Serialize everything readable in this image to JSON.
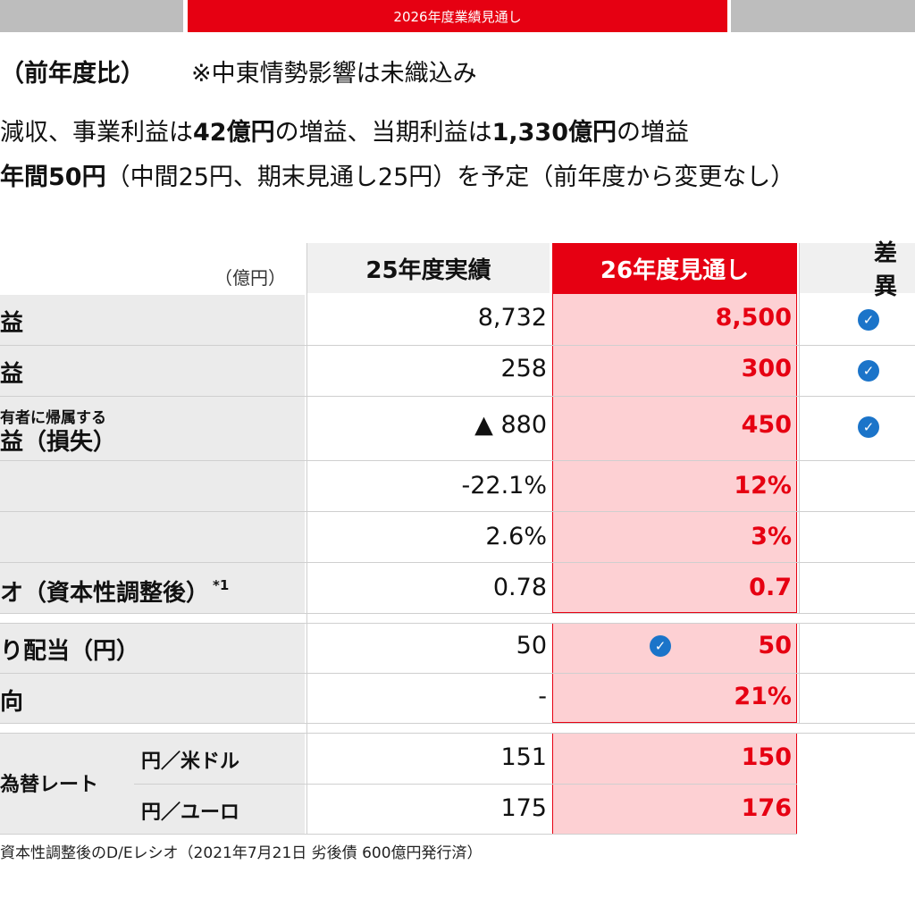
{
  "header": {
    "tab_label": "2026年度業績見通し"
  },
  "headlines": {
    "line1_a": "（前年度比）",
    "line1_b": "※中東情勢影響は未織込み",
    "line2_a": "減収、事業利益は",
    "line2_b": "42億円",
    "line2_c": "の増益、当期利益は",
    "line2_d": "1,330億円",
    "line2_e": "の増益",
    "line3_a": "年間50円",
    "line3_b": "（中間25円、期末見通し25円）を予定（前年度から変更なし）"
  },
  "table": {
    "unit": "（億円）",
    "col_actual": "25年度実績",
    "col_forecast": "26年度見通し",
    "col_diff": "差異",
    "rows": [
      {
        "label": "益",
        "actual": "8,732",
        "forecast": "8,500"
      },
      {
        "label": "益",
        "actual": "258",
        "forecast": "300"
      },
      {
        "label_small": "有者に帰属する",
        "label": "益（損失）",
        "actual": "▲ 880",
        "forecast": "450"
      },
      {
        "label": "",
        "actual": "-22.1%",
        "forecast": "12%"
      },
      {
        "label": "",
        "actual": "2.6%",
        "forecast": "3%"
      },
      {
        "label": "オ（資本性調整後）",
        "sup": "*1",
        "actual": "0.78",
        "forecast": "0.7"
      },
      {
        "label": "り配当（円）",
        "actual": "50",
        "forecast": "50"
      },
      {
        "label": "向",
        "actual": "-",
        "forecast": "21%"
      },
      {
        "label": "為替レート",
        "sub": "円／米ドル",
        "actual": "151",
        "forecast": "150"
      },
      {
        "label": "",
        "sub": "円／ユーロ",
        "actual": "175",
        "forecast": "176"
      }
    ]
  },
  "footnote": "資本性調整後のD/Eレシオ（2021年7月21日 劣後債 600億円発行済）",
  "icons": {
    "check": "check-circle-icon"
  },
  "colors": {
    "accent": "#e60012",
    "forecast_bg": "#fdd0d3",
    "check": "#1b74c9"
  }
}
